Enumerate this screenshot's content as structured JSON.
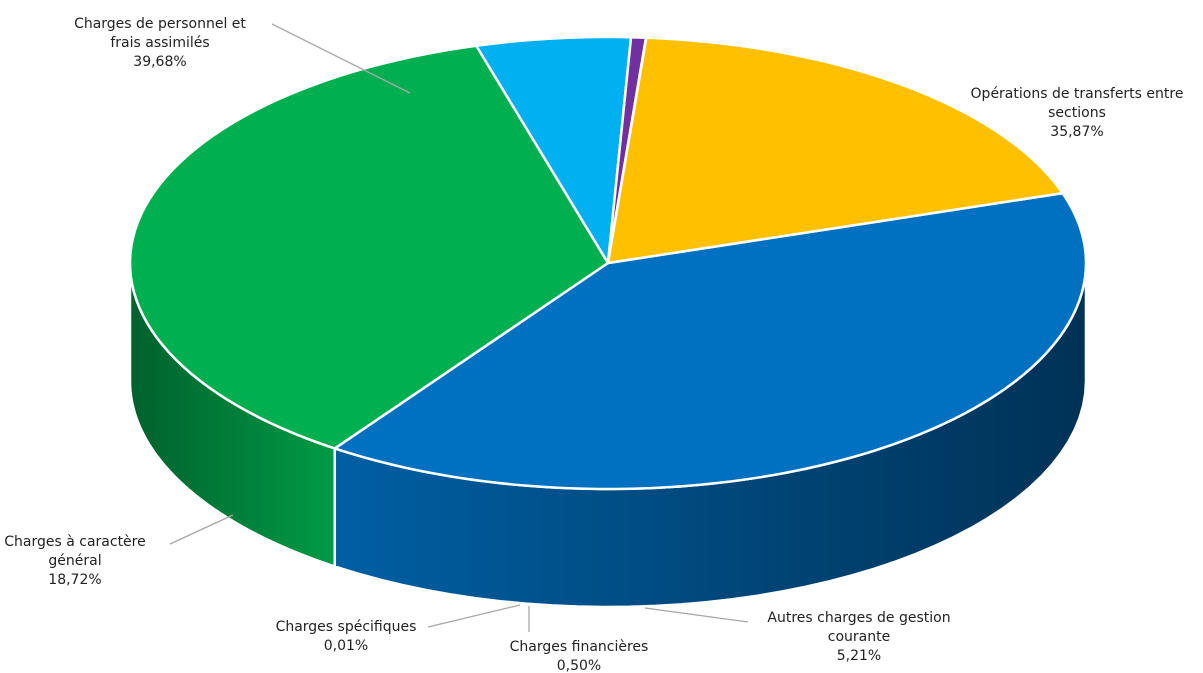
{
  "chart_data": {
    "type": "pie",
    "title": "",
    "slices": [
      {
        "label": "Charges de personnel et frais assimilés",
        "value": 39.68,
        "display": "39,68%",
        "color": "#0070C0"
      },
      {
        "label": "Opérations de transferts entre sections",
        "value": 35.87,
        "display": "35,87%",
        "color": "#00B050"
      },
      {
        "label": "Autres charges de gestion courante",
        "value": 5.21,
        "display": "5,21%",
        "color": "#00B0F0"
      },
      {
        "label": "Charges financières",
        "value": 0.5,
        "display": "0,50%",
        "color": "#7030A0"
      },
      {
        "label": "Charges spécifiques",
        "value": 0.01,
        "display": "0,01%",
        "color": "#002060"
      },
      {
        "label": "Charges à caractère général",
        "value": 18.72,
        "display": "18,72%",
        "color": "#FFC000"
      }
    ]
  }
}
